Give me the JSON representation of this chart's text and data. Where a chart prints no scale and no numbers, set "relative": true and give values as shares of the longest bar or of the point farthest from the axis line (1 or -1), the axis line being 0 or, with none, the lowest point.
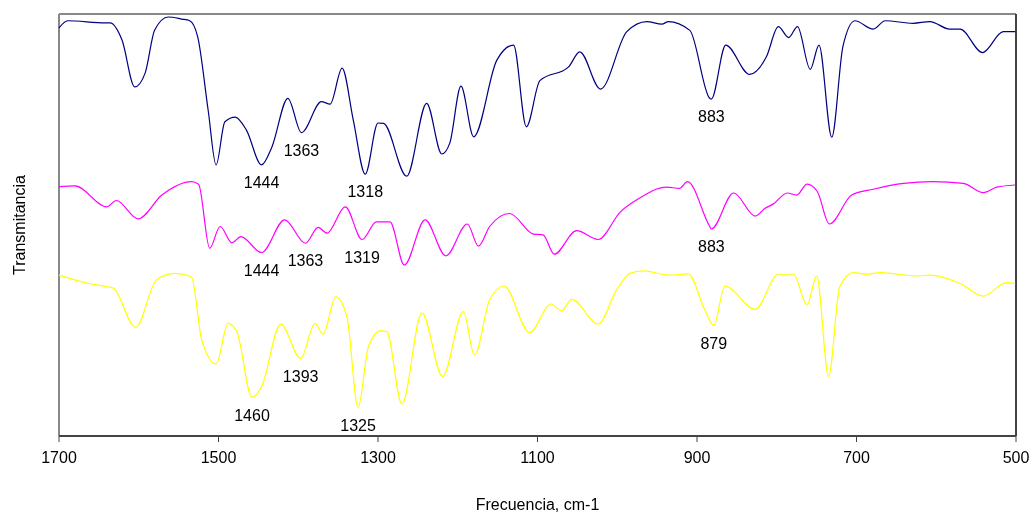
{
  "chart_data": {
    "type": "line",
    "relative": true,
    "xlabel": "Frecuencia, cm-1",
    "ylabel": "Transmitancia",
    "xlim": [
      1700,
      500
    ],
    "xticks": [
      1700,
      1500,
      1300,
      1100,
      900,
      700,
      500
    ],
    "grid": false,
    "marker": "none",
    "line_style": "solid",
    "series": [
      {
        "color": "#000080",
        "x": [
          1700,
          1689,
          1642,
          1636,
          1621,
          1605,
          1592,
          1580,
          1563,
          1546,
          1536,
          1526,
          1513,
          1503,
          1492,
          1479,
          1465,
          1446,
          1433,
          1413,
          1396,
          1371,
          1360,
          1345,
          1331,
          1316,
          1300,
          1293,
          1264,
          1239,
          1220,
          1210,
          1196,
          1180,
          1151,
          1130,
          1114,
          1097,
          1061,
          1047,
          1021,
          988,
          963,
          944,
          936,
          909,
          884,
          882,
          864,
          834,
          813,
          798,
          785,
          774,
          758,
          747,
          731,
          717,
          702,
          679,
          664,
          629,
          608,
          583,
          570,
          542,
          516,
          501
        ],
        "values": [
          0.974,
          0.991,
          0.986,
          0.986,
          0.945,
          0.833,
          0.866,
          0.969,
          1,
          0.995,
          0.991,
          0.952,
          0.778,
          0.647,
          0.75,
          0.761,
          0.73,
          0.647,
          0.69,
          0.806,
          0.724,
          0.798,
          0.792,
          0.878,
          0.754,
          0.625,
          0.747,
          0.746,
          0.62,
          0.794,
          0.673,
          0.699,
          0.835,
          0.714,
          0.897,
          0.933,
          0.738,
          0.848,
          0.881,
          0.917,
          0.828,
          0.965,
          0.989,
          0.983,
          0.989,
          0.968,
          0.806,
          0.804,
          0.933,
          0.863,
          0.905,
          0.977,
          0.951,
          0.977,
          0.875,
          0.933,
          0.713,
          0.93,
          0.991,
          0.971,
          0.991,
          0.985,
          0.989,
          0.971,
          0.971,
          0.915,
          0.965,
          0.965
        ]
      },
      {
        "color": "#ff00ff",
        "x": [
          1700,
          1680,
          1640,
          1628,
          1601,
          1571,
          1534,
          1525,
          1511,
          1498,
          1483,
          1472,
          1446,
          1417,
          1391,
          1375,
          1364,
          1341,
          1320,
          1302,
          1285,
          1267,
          1241,
          1215,
          1188,
          1174,
          1160,
          1135,
          1105,
          1093,
          1079,
          1051,
          1024,
          996,
          976,
          938,
          922,
          912,
          884,
          882,
          854,
          827,
          815,
          804,
          787,
          775,
          762,
          749,
          734,
          706,
          679,
          641,
          604,
          566,
          541,
          524,
          501
        ],
        "values": [
          0.595,
          0.597,
          0.547,
          0.562,
          0.518,
          0.575,
          0.607,
          0.601,
          0.448,
          0.5,
          0.461,
          0.476,
          0.438,
          0.516,
          0.46,
          0.498,
          0.484,
          0.547,
          0.469,
          0.511,
          0.511,
          0.408,
          0.516,
          0.43,
          0.506,
          0.453,
          0.5,
          0.531,
          0.482,
          0.48,
          0.434,
          0.49,
          0.469,
          0.535,
          0.563,
          0.594,
          0.591,
          0.607,
          0.5,
          0.494,
          0.58,
          0.525,
          0.543,
          0.554,
          0.58,
          0.575,
          0.601,
          0.583,
          0.506,
          0.575,
          0.589,
          0.603,
          0.607,
          0.603,
          0.581,
          0.594,
          0.599
        ]
      },
      {
        "color": "#ffff00",
        "x": [
          1700,
          1663,
          1632,
          1604,
          1578,
          1555,
          1534,
          1521,
          1503,
          1488,
          1477,
          1458,
          1446,
          1422,
          1397,
          1379,
          1369,
          1353,
          1339,
          1325,
          1312,
          1297,
          1289,
          1270,
          1245,
          1219,
          1193,
          1179,
          1160,
          1142,
          1110,
          1083,
          1070,
          1057,
          1024,
          1001,
          984,
          967,
          934,
          911,
          890,
          879,
          865,
          827,
          798,
          779,
          762,
          750,
          735,
          721,
          704,
          687,
          670,
          624,
          608,
          570,
          541,
          512,
          501
        ],
        "values": [
          0.384,
          0.364,
          0.353,
          0.259,
          0.372,
          0.388,
          0.38,
          0.229,
          0.172,
          0.269,
          0.249,
          0.092,
          0.118,
          0.267,
          0.185,
          0.269,
          0.243,
          0.332,
          0.285,
          0.068,
          0.213,
          0.251,
          0.249,
          0.076,
          0.294,
          0.142,
          0.297,
          0.193,
          0.325,
          0.358,
          0.247,
          0.315,
          0.299,
          0.326,
          0.267,
          0.348,
          0.388,
          0.394,
          0.384,
          0.387,
          0.3,
          0.264,
          0.358,
          0.302,
          0.386,
          0.386,
          0.313,
          0.382,
          0.142,
          0.356,
          0.39,
          0.386,
          0.39,
          0.382,
          0.384,
          0.364,
          0.334,
          0.366,
          0.364
        ]
      }
    ],
    "annotations": [
      {
        "text": "1444",
        "x": 1446,
        "y": 0.647
      },
      {
        "text": "1363",
        "x": 1396,
        "y": 0.724
      },
      {
        "text": "1318",
        "x": 1316,
        "y": 0.625
      },
      {
        "text": "883",
        "x": 882,
        "y": 0.804
      },
      {
        "text": "1444",
        "x": 1446,
        "y": 0.438
      },
      {
        "text": "1363",
        "x": 1391,
        "y": 0.46
      },
      {
        "text": "1319",
        "x": 1320,
        "y": 0.469
      },
      {
        "text": "883",
        "x": 882,
        "y": 0.494
      },
      {
        "text": "1393",
        "x": 1397,
        "y": 0.185
      },
      {
        "text": "1460",
        "x": 1458,
        "y": 0.092
      },
      {
        "text": "1325",
        "x": 1325,
        "y": 0.068
      },
      {
        "text": "879",
        "x": 879,
        "y": 0.264
      }
    ]
  }
}
